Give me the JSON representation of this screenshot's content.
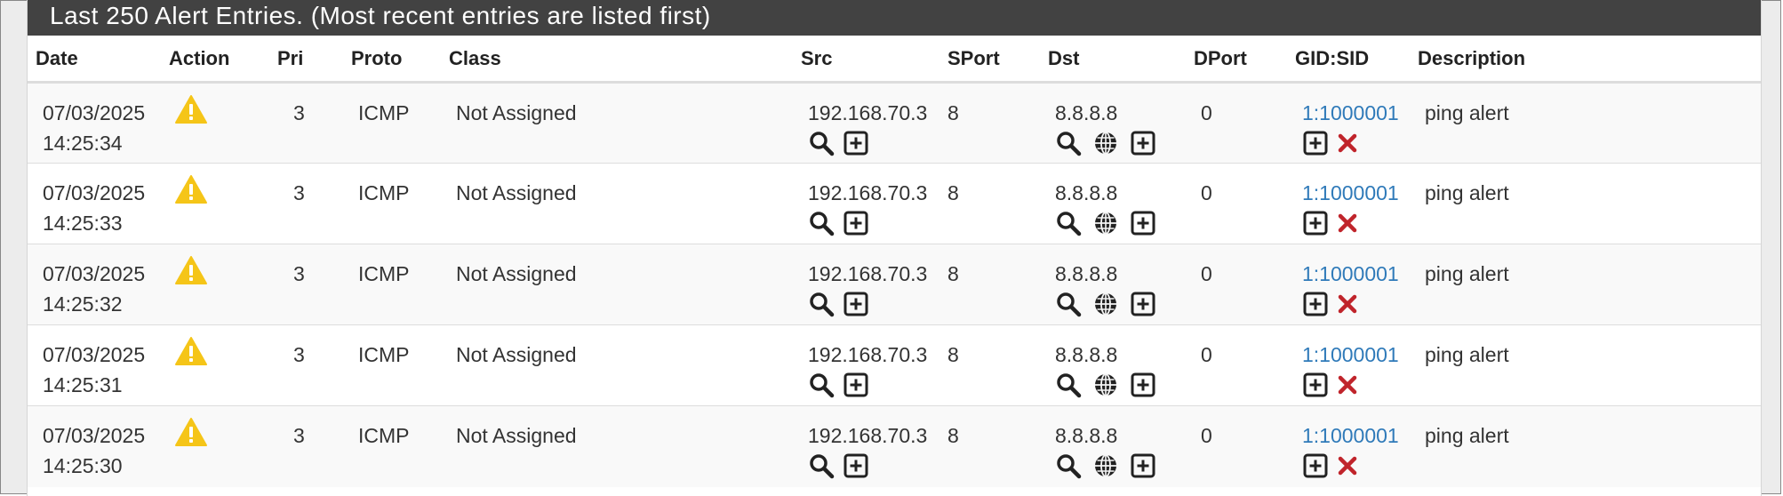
{
  "panel": {
    "title": "Last 250 Alert Entries. (Most recent entries are listed first)"
  },
  "table": {
    "headers": [
      "Date",
      "Action",
      "Pri",
      "Proto",
      "Class",
      "Src",
      "SPort",
      "Dst",
      "DPort",
      "GID:SID",
      "Description"
    ],
    "rows": [
      {
        "date": "07/03/2025",
        "time": "14:25:34",
        "pri": "3",
        "proto": "ICMP",
        "class": "Not Assigned",
        "src": "192.168.70.3",
        "sport": "8",
        "dst": "8.8.8.8",
        "dport": "0",
        "gidsid": "1:1000001",
        "description": "ping alert"
      },
      {
        "date": "07/03/2025",
        "time": "14:25:33",
        "pri": "3",
        "proto": "ICMP",
        "class": "Not Assigned",
        "src": "192.168.70.3",
        "sport": "8",
        "dst": "8.8.8.8",
        "dport": "0",
        "gidsid": "1:1000001",
        "description": "ping alert"
      },
      {
        "date": "07/03/2025",
        "time": "14:25:32",
        "pri": "3",
        "proto": "ICMP",
        "class": "Not Assigned",
        "src": "192.168.70.3",
        "sport": "8",
        "dst": "8.8.8.8",
        "dport": "0",
        "gidsid": "1:1000001",
        "description": "ping alert"
      },
      {
        "date": "07/03/2025",
        "time": "14:25:31",
        "pri": "3",
        "proto": "ICMP",
        "class": "Not Assigned",
        "src": "192.168.70.3",
        "sport": "8",
        "dst": "8.8.8.8",
        "dport": "0",
        "gidsid": "1:1000001",
        "description": "ping alert"
      },
      {
        "date": "07/03/2025",
        "time": "14:25:30",
        "pri": "3",
        "proto": "ICMP",
        "class": "Not Assigned",
        "src": "192.168.70.3",
        "sport": "8",
        "dst": "8.8.8.8",
        "dport": "0",
        "gidsid": "1:1000001",
        "description": "ping alert"
      }
    ]
  },
  "icons": {
    "action": "warning-icon",
    "src": [
      "search-icon",
      "plus-square-icon"
    ],
    "dst": [
      "search-icon",
      "globe-icon",
      "plus-square-icon"
    ],
    "gidsid": [
      "plus-square-icon",
      "close-icon"
    ]
  },
  "colors": {
    "heading_bg": "#424242",
    "link": "#2f7ab9",
    "warning": "#f5c518",
    "delete": "#c0242b"
  }
}
